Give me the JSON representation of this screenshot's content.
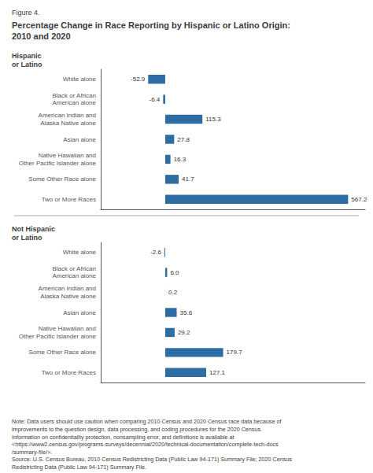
{
  "figure_label": "Figure 4.",
  "title": "Percentage Change in Race Reporting by Hispanic or Latino Origin:\n2010 and 2020",
  "note": "Note: Data users should use caution when comparing 2010 Census and 2020 Census race data because of\nimprovements to the question design, data processing, and coding procedures for the 2020 Census.\nInformation on confidentiality protection, nonsampling error, and definitions is available at\n<https://www2.census.gov/programs-surveys/decennial/2020/technical-documentation/complete-tech-docs\n/summary-file/>.\nSource: U.S. Census Bureau, 2010 Census Redistricting Data (Public Law 94-171) Summary File; 2020 Census\nRedistricting Data (Public Law 94-171) Summary File.",
  "chart_data": [
    {
      "type": "bar",
      "orientation": "horizontal",
      "title": "Hispanic\nor Latino",
      "categories": [
        "White alone",
        "Black or African\nAmerican alone",
        "American Indian and\nAlaska Native alone",
        "Asian alone",
        "Native Hawaiian and\nOther Pacific Islander alone",
        "Some Other Race alone",
        "Two or More Races"
      ],
      "values": [
        -52.9,
        -6.4,
        115.3,
        27.8,
        16.3,
        41.7,
        567.2
      ],
      "value_labels": [
        "-52.9",
        "-6.4",
        "115.3",
        "27.8",
        "16.3",
        "41.7",
        "567.2"
      ],
      "color": "#2e6da4",
      "xlim": [
        -200,
        620
      ],
      "tick_labels": false,
      "data_labels": true,
      "grid": false
    },
    {
      "type": "bar",
      "orientation": "horizontal",
      "title": "Not Hispanic\nor Latino",
      "categories": [
        "White alone",
        "Black or African\nAmerican alone",
        "American Indian and\nAlaska Native alone",
        "Asian alone",
        "Native Hawaiian and\nOther Pacific Islander alone",
        "Some Other Race alone",
        "Two or More Races"
      ],
      "values": [
        -2.6,
        6.0,
        0.2,
        35.6,
        29.2,
        179.7,
        127.1
      ],
      "value_labels": [
        "-2.6",
        "6.0",
        "0.2",
        "35.6",
        "29.2",
        "179.7",
        "127.1"
      ],
      "color": "#2e6da4",
      "xlim": [
        -200,
        620
      ],
      "tick_labels": false,
      "data_labels": true,
      "grid": false
    }
  ]
}
